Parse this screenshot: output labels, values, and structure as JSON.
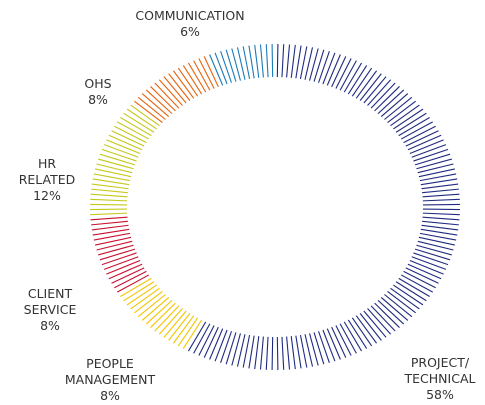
{
  "chart_data": {
    "type": "donut",
    "categories": [
      "PROJECT/\nTECHNICAL",
      "PEOPLE\nMANAGEMENT",
      "CLIENT\nSERVICE",
      "HR\nRELATED",
      "OHS",
      "COMMUNICATION"
    ],
    "values": [
      58,
      8,
      8,
      12,
      8,
      6
    ],
    "value_labels": [
      "58%",
      "8%",
      "8%",
      "12%",
      "8%",
      "6%"
    ],
    "colors": [
      "#1f2a80",
      "#f2c500",
      "#c8102e",
      "#c5c81a",
      "#e8620a",
      "#1b7ab8"
    ]
  }
}
